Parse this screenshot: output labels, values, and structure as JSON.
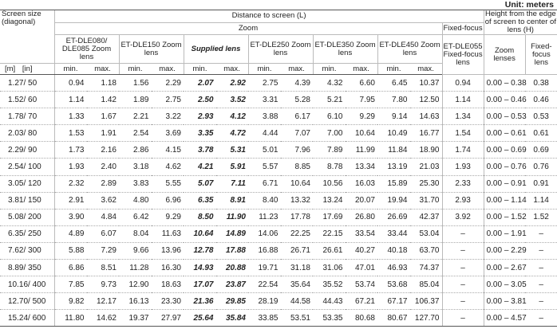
{
  "unit": "Unit: meters",
  "header": {
    "screen_size": "Screen size (diagonal)",
    "distance": "Distance to screen (L)",
    "height": "Height from the edge of screen to center of lens (H)",
    "zoom": "Zoom",
    "fixed_focus": "Fixed-focus",
    "lenses": [
      "ET-DLE080/ DLE085 Zoom lens",
      "ET-DLE150 Zoom lens",
      "Supplied lens",
      "ET-DLE250 Zoom lens",
      "ET-DLE350 Zoom lens",
      "ET-DLE450 Zoom lens",
      "ET-DLE055 Fixed-focus lens"
    ],
    "height_cols": [
      "Zoom lenses",
      "Fixed-focus lens"
    ],
    "unit_m": "[m]",
    "unit_in": "[in]",
    "min": "min.",
    "max": "max."
  },
  "table": {
    "rows": [
      [
        "1.27/ 50",
        "0.94",
        "1.18",
        "1.56",
        "2.29",
        "2.07",
        "2.92",
        "2.75",
        "4.39",
        "4.32",
        "6.60",
        "6.45",
        "10.37",
        "0.94",
        "0.00 – 0.38",
        "0.38"
      ],
      [
        "1.52/ 60",
        "1.14",
        "1.42",
        "1.89",
        "2.75",
        "2.50",
        "3.52",
        "3.31",
        "5.28",
        "5.21",
        "7.95",
        "7.80",
        "12.50",
        "1.14",
        "0.00 – 0.46",
        "0.46"
      ],
      [
        "1.78/ 70",
        "1.33",
        "1.67",
        "2.21",
        "3.22",
        "2.93",
        "4.12",
        "3.88",
        "6.17",
        "6.10",
        "9.29",
        "9.14",
        "14.63",
        "1.34",
        "0.00 – 0.53",
        "0.53"
      ],
      [
        "2.03/ 80",
        "1.53",
        "1.91",
        "2.54",
        "3.69",
        "3.35",
        "4.72",
        "4.44",
        "7.07",
        "7.00",
        "10.64",
        "10.49",
        "16.77",
        "1.54",
        "0.00 – 0.61",
        "0.61"
      ],
      [
        "2.29/ 90",
        "1.73",
        "2.16",
        "2.86",
        "4.15",
        "3.78",
        "5.31",
        "5.01",
        "7.96",
        "7.89",
        "11.99",
        "11.84",
        "18.90",
        "1.74",
        "0.00 – 0.69",
        "0.69"
      ],
      [
        "2.54/ 100",
        "1.93",
        "2.40",
        "3.18",
        "4.62",
        "4.21",
        "5.91",
        "5.57",
        "8.85",
        "8.78",
        "13.34",
        "13.19",
        "21.03",
        "1.93",
        "0.00 – 0.76",
        "0.76"
      ],
      [
        "3.05/ 120",
        "2.32",
        "2.89",
        "3.83",
        "5.55",
        "5.07",
        "7.11",
        "6.71",
        "10.64",
        "10.56",
        "16.03",
        "15.89",
        "25.30",
        "2.33",
        "0.00 – 0.91",
        "0.91"
      ],
      [
        "3.81/ 150",
        "2.91",
        "3.62",
        "4.80",
        "6.96",
        "6.35",
        "8.91",
        "8.40",
        "13.32",
        "13.24",
        "20.07",
        "19.94",
        "31.70",
        "2.93",
        "0.00 – 1.14",
        "1.14"
      ],
      [
        "5.08/ 200",
        "3.90",
        "4.84",
        "6.42",
        "9.29",
        "8.50",
        "11.90",
        "11.23",
        "17.78",
        "17.69",
        "26.80",
        "26.69",
        "42.37",
        "3.92",
        "0.00 – 1.52",
        "1.52"
      ],
      [
        "6.35/ 250",
        "4.89",
        "6.07",
        "8.04",
        "11.63",
        "10.64",
        "14.89",
        "14.06",
        "22.25",
        "22.15",
        "33.54",
        "33.44",
        "53.04",
        "–",
        "0.00 – 1.91",
        "–"
      ],
      [
        "7.62/ 300",
        "5.88",
        "7.29",
        "9.66",
        "13.96",
        "12.78",
        "17.88",
        "16.88",
        "26.71",
        "26.61",
        "40.27",
        "40.18",
        "63.70",
        "–",
        "0.00 – 2.29",
        "–"
      ],
      [
        "8.89/ 350",
        "6.86",
        "8.51",
        "11.28",
        "16.30",
        "14.93",
        "20.88",
        "19.71",
        "31.18",
        "31.06",
        "47.01",
        "46.93",
        "74.37",
        "–",
        "0.00 – 2.67",
        "–"
      ],
      [
        "10.16/ 400",
        "7.85",
        "9.73",
        "12.90",
        "18.63",
        "17.07",
        "23.87",
        "22.54",
        "35.64",
        "35.52",
        "53.74",
        "53.68",
        "85.04",
        "–",
        "0.00 – 3.05",
        "–"
      ],
      [
        "12.70/ 500",
        "9.82",
        "12.17",
        "16.13",
        "23.30",
        "21.36",
        "29.85",
        "28.19",
        "44.58",
        "44.43",
        "67.21",
        "67.17",
        "106.37",
        "–",
        "0.00 – 3.81",
        "–"
      ],
      [
        "15.24/ 600",
        "11.80",
        "14.62",
        "19.37",
        "27.97",
        "25.64",
        "35.84",
        "33.85",
        "53.51",
        "53.35",
        "80.68",
        "80.67",
        "127.70",
        "–",
        "0.00 – 4.57",
        "–"
      ]
    ]
  }
}
